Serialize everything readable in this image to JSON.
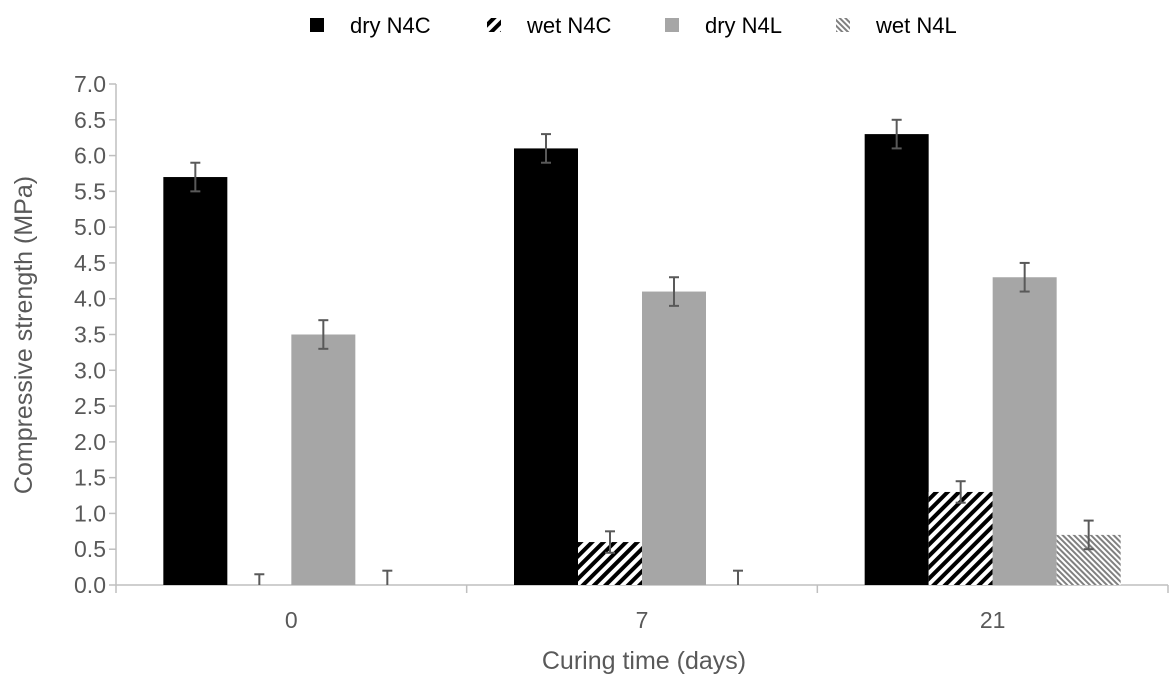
{
  "chart_data": {
    "type": "bar",
    "categories": [
      "0",
      "7",
      "21"
    ],
    "series": [
      {
        "name": "dry N4C",
        "values": [
          5.7,
          6.1,
          6.3
        ],
        "errors": [
          0.2,
          0.2,
          0.2
        ],
        "fill": "#000000",
        "pattern": "solid"
      },
      {
        "name": "wet N4C",
        "values": [
          0.0,
          0.6,
          1.3
        ],
        "errors": [
          0.15,
          0.15,
          0.15
        ],
        "fill": "#000000",
        "pattern": "diagonal-hatch"
      },
      {
        "name": "dry N4L",
        "values": [
          3.5,
          4.1,
          4.3
        ],
        "errors": [
          0.2,
          0.2,
          0.2
        ],
        "fill": "#a6a6a6",
        "pattern": "solid"
      },
      {
        "name": "wet N4L",
        "values": [
          0.0,
          0.0,
          0.7
        ],
        "errors": [
          0.2,
          0.2,
          0.2
        ],
        "fill": "#808080",
        "pattern": "fine-hatch"
      }
    ],
    "xlabel": "Curing time (days)",
    "ylabel": "Compressive strength (MPa)",
    "ylim": [
      0,
      7.0
    ],
    "yticks": [
      "0.0",
      "0.5",
      "1.0",
      "1.5",
      "2.0",
      "2.5",
      "3.0",
      "3.5",
      "4.0",
      "4.5",
      "5.0",
      "5.5",
      "6.0",
      "6.5",
      "7.0"
    ],
    "grid": false,
    "legend_position": "top",
    "error_bar_color": "#595959",
    "axis_color": "#bfbfbf"
  }
}
